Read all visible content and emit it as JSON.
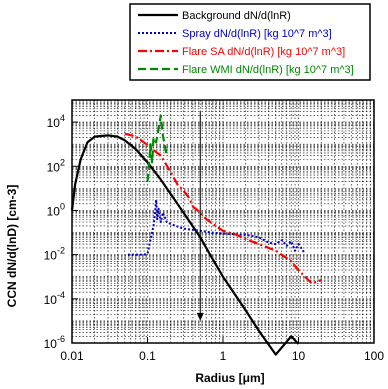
{
  "chart_data": {
    "type": "line",
    "title": "",
    "xlabel": "Radius [μm]",
    "ylabel": "CCN dN/d(lnD) [cm-3]",
    "x_scale": "log",
    "y_scale": "log",
    "xlim": [
      0.01,
      100
    ],
    "ylim": [
      1e-06,
      100000.0
    ],
    "grid": true,
    "legend_position": "top-right",
    "x_ticks": [
      {
        "value": 0.01,
        "label": "0.01"
      },
      {
        "value": 0.1,
        "label": "0.1"
      },
      {
        "value": 1,
        "label": "1"
      },
      {
        "value": 10,
        "label": "10"
      },
      {
        "value": 100,
        "label": "100"
      }
    ],
    "y_ticks": [
      {
        "value": 1e-06,
        "base": "10",
        "exp": "-6"
      },
      {
        "value": 0.0001,
        "base": "10",
        "exp": "-4"
      },
      {
        "value": 0.01,
        "base": "10",
        "exp": "-2"
      },
      {
        "value": 1,
        "base": "10",
        "exp": "0"
      },
      {
        "value": 100,
        "base": "10",
        "exp": "2"
      },
      {
        "value": 10000,
        "base": "10",
        "exp": "4"
      }
    ],
    "annotation": {
      "type": "vertical-arrow",
      "x": 0.5,
      "y_from": 30000,
      "y_to": 1e-05
    },
    "series": [
      {
        "name": "Background dN/d(lnR)",
        "color": "#000000",
        "dash": "solid",
        "width": 2.2,
        "points": [
          [
            0.01,
            1
          ],
          [
            0.011,
            15
          ],
          [
            0.013,
            200
          ],
          [
            0.016,
            1200
          ],
          [
            0.02,
            2200
          ],
          [
            0.03,
            2500
          ],
          [
            0.04,
            2200
          ],
          [
            0.05,
            1500
          ],
          [
            0.07,
            600
          ],
          [
            0.1,
            150
          ],
          [
            0.15,
            25
          ],
          [
            0.2,
            6
          ],
          [
            0.3,
            0.8
          ],
          [
            0.5,
            0.06
          ],
          [
            0.7,
            0.008
          ],
          [
            1,
            0.001
          ],
          [
            2,
            3e-05
          ],
          [
            3,
            3.5e-06
          ],
          [
            5,
            3e-07
          ],
          [
            8,
            2e-06
          ],
          [
            10,
            9e-07
          ]
        ]
      },
      {
        "name": "Spray dN/d(lnR) [kg 10^7 m^3]",
        "color": "#0000cc",
        "dash": "dotted",
        "width": 2,
        "points": [
          [
            0.055,
            0.01
          ],
          [
            0.09,
            0.01
          ],
          [
            0.1,
            0.011
          ],
          [
            0.11,
            0.05
          ],
          [
            0.12,
            0.2
          ],
          [
            0.125,
            0.6
          ],
          [
            0.13,
            3
          ],
          [
            0.135,
            0.4
          ],
          [
            0.14,
            1.2
          ],
          [
            0.15,
            0.3
          ],
          [
            0.16,
            0.8
          ],
          [
            0.18,
            0.3
          ],
          [
            0.2,
            0.25
          ],
          [
            0.3,
            0.15
          ],
          [
            0.5,
            0.12
          ],
          [
            0.7,
            0.1
          ],
          [
            1,
            0.09
          ],
          [
            2,
            0.08
          ],
          [
            3,
            0.06
          ],
          [
            4,
            0.035
          ],
          [
            5,
            0.03
          ],
          [
            6,
            0.045
          ],
          [
            7,
            0.025
          ],
          [
            8,
            0.04
          ],
          [
            9,
            0.015
          ],
          [
            10,
            0.03
          ],
          [
            12,
            0.012
          ]
        ]
      },
      {
        "name": "Flare SA dN/d(lnR) [kg 10^7 m^3]",
        "color": "#ff0000",
        "dash": "dash-dot",
        "width": 2.2,
        "points": [
          [
            0.05,
            3000
          ],
          [
            0.07,
            2200
          ],
          [
            0.09,
            1200
          ],
          [
            0.1,
            900
          ],
          [
            0.15,
            300
          ],
          [
            0.2,
            60
          ],
          [
            0.25,
            15
          ],
          [
            0.3,
            8
          ],
          [
            0.35,
            4
          ],
          [
            0.4,
            1.5
          ],
          [
            0.5,
            0.8
          ],
          [
            0.6,
            0.4
          ],
          [
            0.8,
            0.2
          ],
          [
            1,
            0.12
          ],
          [
            1.5,
            0.08
          ],
          [
            2,
            0.05
          ],
          [
            3,
            0.03
          ],
          [
            5,
            0.015
          ],
          [
            8,
            0.005
          ],
          [
            10,
            0.002
          ],
          [
            15,
            0.0005
          ],
          [
            20,
            0.0007
          ]
        ]
      },
      {
        "name": "Flare WMI dN/d(lnR) [kg 10^7 m^3]",
        "color": "#008800",
        "dash": "dashed",
        "width": 2.2,
        "points": [
          [
            0.1,
            20
          ],
          [
            0.11,
            1000
          ],
          [
            0.115,
            150
          ],
          [
            0.12,
            2000
          ],
          [
            0.13,
            1200
          ],
          [
            0.14,
            5000
          ],
          [
            0.15,
            20000
          ],
          [
            0.16,
            2500
          ],
          [
            0.18,
            300
          ]
        ]
      }
    ]
  }
}
